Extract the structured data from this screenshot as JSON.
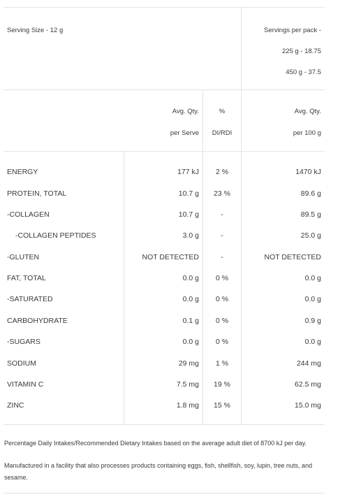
{
  "serving": {
    "size_label": "Serving Size - 12 g",
    "per_pack_label": "Servings per pack -",
    "pack_225": "225 g - 18.75",
    "pack_450": "450 g - 37.5"
  },
  "headers": {
    "avg_qty": "Avg. Qty.",
    "per_serve": "per Serve",
    "percent": "%",
    "di_rdi": "DI/RDI",
    "avg_qty_2": "Avg. Qty.",
    "per_100g": "per 100 g"
  },
  "rows": [
    {
      "name": "ENERGY",
      "serve": "177 kJ",
      "pct": "2 %",
      "per100": "1470 kJ"
    },
    {
      "name": "PROTEIN, TOTAL",
      "serve": "10.7 g",
      "pct": "23 %",
      "per100": "89.6 g"
    },
    {
      "name": "-COLLAGEN",
      "serve": "10.7 g",
      "pct": "-",
      "per100": "89.5 g"
    },
    {
      "name": "-COLLAGEN PEPTIDES",
      "serve": "3.0 g",
      "pct": "-",
      "per100": "25.0 g"
    },
    {
      "name": "-GLUTEN",
      "serve": "NOT DETECTED",
      "pct": "-",
      "per100": "NOT DETECTED"
    },
    {
      "name": "FAT, TOTAL",
      "serve": "0.0 g",
      "pct": "0 %",
      "per100": "0.0 g"
    },
    {
      "name": "-SATURATED",
      "serve": "0.0 g",
      "pct": "0 %",
      "per100": "0.0 g"
    },
    {
      "name": "CARBOHYDRATE",
      "serve": "0.1 g",
      "pct": "0 %",
      "per100": "0.9 g"
    },
    {
      "name": "-SUGARS",
      "serve": "0.0 g",
      "pct": "0 %",
      "per100": "0.0 g"
    },
    {
      "name": "SODIUM",
      "serve": "29 mg",
      "pct": "1 %",
      "per100": "244 mg"
    },
    {
      "name": "VITAMIN C",
      "serve": "7.5 mg",
      "pct": "19 %",
      "per100": "62.5 mg"
    },
    {
      "name": "ZINC",
      "serve": "1.8 mg",
      "pct": "15 %",
      "per100": "15.0 mg"
    }
  ],
  "notes": {
    "di_rdi_note": "Percentage Daily Intakes/Recommended Dietary Intakes based on the average adult diet of 8700 kJ per day.",
    "allergen_note": "Manufactured in a facility that also processes products containing eggs, fish, shellfish, soy, lupin, tree nuts, and sesame."
  }
}
